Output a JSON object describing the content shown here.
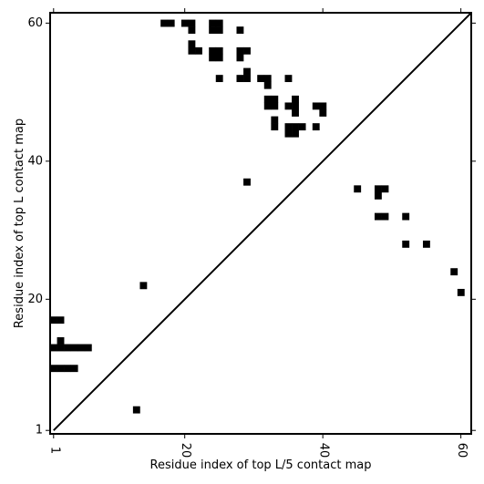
{
  "chart_data": {
    "type": "heatmap",
    "xlabel": "Residue index of top L/5 contact map",
    "ylabel": "Residue index of top L contact map",
    "xlim": [
      0.5,
      61.5
    ],
    "ylim": [
      0.5,
      61.5
    ],
    "x_ticks": [
      1,
      20,
      40,
      60
    ],
    "y_ticks": [
      1,
      20,
      40,
      60
    ],
    "x_tick_labels": [
      "1",
      "20",
      "40",
      "60"
    ],
    "y_tick_labels": [
      "1",
      "20",
      "40",
      "60"
    ],
    "x_tick_rotation": "vertical",
    "diagonal_line": true,
    "cell_color": "#000000",
    "background_color": "#ffffff",
    "upper_triangle_cells": [
      [
        17,
        60
      ],
      [
        18,
        60
      ],
      [
        20,
        60
      ],
      [
        21,
        60
      ],
      [
        21,
        59
      ],
      [
        24,
        60
      ],
      [
        25,
        60
      ],
      [
        24,
        59
      ],
      [
        25,
        59
      ],
      [
        28,
        59
      ],
      [
        21,
        57
      ],
      [
        21,
        56
      ],
      [
        22,
        56
      ],
      [
        24,
        56
      ],
      [
        25,
        56
      ],
      [
        24,
        55
      ],
      [
        25,
        55
      ],
      [
        28,
        56
      ],
      [
        29,
        56
      ],
      [
        28,
        55
      ],
      [
        25,
        52
      ],
      [
        28,
        52
      ],
      [
        29,
        52
      ],
      [
        29,
        53
      ],
      [
        31,
        52
      ],
      [
        32,
        52
      ],
      [
        32,
        51
      ],
      [
        35,
        52
      ],
      [
        32,
        49
      ],
      [
        33,
        49
      ],
      [
        32,
        48
      ],
      [
        33,
        48
      ],
      [
        35,
        48
      ],
      [
        36,
        48
      ],
      [
        36,
        49
      ],
      [
        36,
        47
      ],
      [
        39,
        48
      ],
      [
        40,
        48
      ],
      [
        40,
        47
      ],
      [
        33,
        46
      ],
      [
        33,
        45
      ],
      [
        35,
        45
      ],
      [
        36,
        45
      ],
      [
        37,
        45
      ],
      [
        35,
        44
      ],
      [
        36,
        44
      ],
      [
        39,
        45
      ],
      [
        29,
        37
      ]
    ],
    "lower_triangle_cells": [
      [
        1,
        17
      ],
      [
        2,
        17
      ],
      [
        2,
        14
      ],
      [
        1,
        13
      ],
      [
        2,
        13
      ],
      [
        3,
        13
      ],
      [
        4,
        13
      ],
      [
        5,
        13
      ],
      [
        6,
        13
      ],
      [
        1,
        10
      ],
      [
        2,
        10
      ],
      [
        3,
        10
      ],
      [
        4,
        10
      ],
      [
        13,
        4
      ],
      [
        14,
        22
      ],
      [
        45,
        36
      ],
      [
        48,
        36
      ],
      [
        49,
        36
      ],
      [
        48,
        35
      ],
      [
        48,
        32
      ],
      [
        49,
        32
      ],
      [
        52,
        32
      ],
      [
        52,
        28
      ],
      [
        55,
        28
      ],
      [
        59,
        24
      ],
      [
        60,
        21
      ]
    ]
  }
}
